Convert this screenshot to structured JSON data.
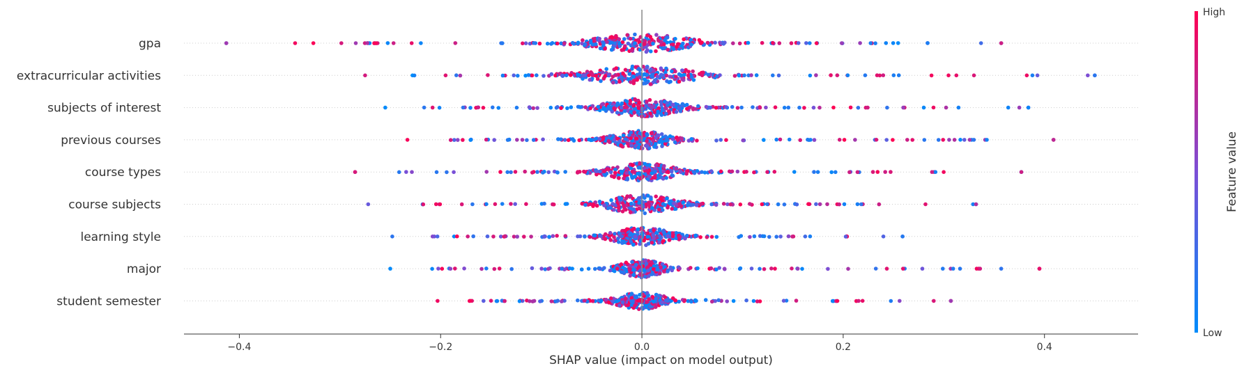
{
  "chart_data": {
    "type": "scatter",
    "xlabel": "SHAP value (impact on model output)",
    "xlim": [
      -0.455,
      0.493
    ],
    "x_ticks": [
      -0.4,
      -0.2,
      0.0,
      0.2,
      0.4
    ],
    "x_tick_labels": [
      "−0.4",
      "−0.2",
      "0.0",
      "0.2",
      "0.4"
    ],
    "grid": false,
    "features": [
      {
        "name": "gpa",
        "min": -0.413,
        "max": 0.357,
        "spread": 0.04,
        "outliers": [
          -0.413,
          0.337,
          0.357
        ]
      },
      {
        "name": "extracurricular activities",
        "min": -0.275,
        "max": 0.45,
        "spread": 0.045,
        "outliers": [
          0.388,
          0.393,
          0.443,
          0.45
        ]
      },
      {
        "name": "subjects of interest",
        "min": -0.255,
        "max": 0.384,
        "spread": 0.03,
        "outliers": [
          0.364,
          0.375,
          0.384
        ]
      },
      {
        "name": "previous courses",
        "min": -0.233,
        "max": 0.409,
        "spread": 0.025,
        "outliers": [
          0.409
        ]
      },
      {
        "name": "course types",
        "min": -0.285,
        "max": 0.377,
        "spread": 0.028,
        "outliers": [
          -0.285,
          0.377
        ]
      },
      {
        "name": "course subjects",
        "min": -0.272,
        "max": 0.332,
        "spread": 0.03,
        "outliers": [
          0.329,
          0.332
        ]
      },
      {
        "name": "learning style",
        "min": -0.248,
        "max": 0.259,
        "spread": 0.025,
        "outliers": [
          0.24,
          0.259
        ]
      },
      {
        "name": "major",
        "min": -0.25,
        "max": 0.395,
        "spread": 0.018,
        "outliers": [
          0.336,
          0.357,
          0.395
        ]
      },
      {
        "name": "student semester",
        "min": -0.203,
        "max": 0.307,
        "spread": 0.02,
        "outliers": [
          0.29,
          0.307
        ]
      }
    ],
    "colorbar": {
      "label": "Feature value",
      "high_label": "High",
      "low_label": "Low",
      "high_color": "#ff0052",
      "mid_color": "#7b4fd6",
      "low_color": "#008bfb"
    },
    "missing_value_color": "#777777"
  }
}
